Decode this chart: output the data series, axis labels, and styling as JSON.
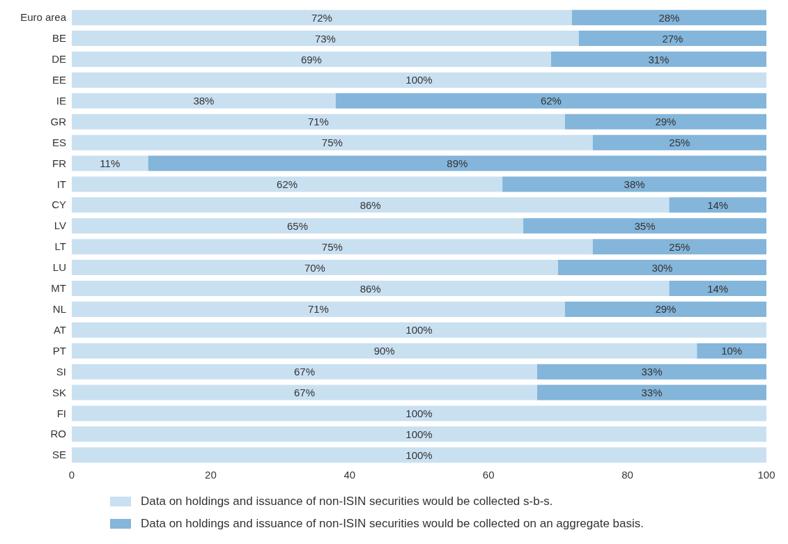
{
  "chart_data": {
    "type": "bar",
    "orientation": "horizontal",
    "stacked": true,
    "categories": [
      "Euro area",
      "BE",
      "DE",
      "EE",
      "IE",
      "GR",
      "ES",
      "FR",
      "IT",
      "CY",
      "LV",
      "LT",
      "LU",
      "MT",
      "NL",
      "AT",
      "PT",
      "SI",
      "SK",
      "FI",
      "RO",
      "SE"
    ],
    "series": [
      {
        "name": "Data on holdings and issuance of non-ISIN securities would be collected s-b-s.",
        "color": "#c9e0f1",
        "values": [
          72,
          73,
          69,
          100,
          38,
          71,
          75,
          11,
          62,
          86,
          65,
          75,
          70,
          86,
          71,
          100,
          90,
          67,
          67,
          100,
          100,
          100
        ],
        "value_labels": [
          "72%",
          "73%",
          "69%",
          "100%",
          "38%",
          "71%",
          "75%",
          "11%",
          "62%",
          "86%",
          "65%",
          "75%",
          "70%",
          "86%",
          "71%",
          "100%",
          "90%",
          "67%",
          "67%",
          "100%",
          "100%",
          "100%"
        ]
      },
      {
        "name": "Data on holdings and issuance of non-ISIN securities would be collected on an aggregate basis.",
        "color": "#84b5da",
        "values": [
          28,
          27,
          31,
          0,
          62,
          29,
          25,
          89,
          38,
          14,
          35,
          25,
          30,
          14,
          29,
          0,
          10,
          33,
          33,
          0,
          0,
          0
        ],
        "value_labels": [
          "28%",
          "27%",
          "31%",
          null,
          "62%",
          "29%",
          "25%",
          "89%",
          "38%",
          "14%",
          "35%",
          "25%",
          "30%",
          "14%",
          "29%",
          null,
          "10%",
          "33%",
          "33%",
          null,
          null,
          null
        ]
      }
    ],
    "xlim": [
      0,
      100
    ],
    "xticks": [
      0,
      20,
      40,
      60,
      80,
      100
    ],
    "legend": "bottom"
  }
}
